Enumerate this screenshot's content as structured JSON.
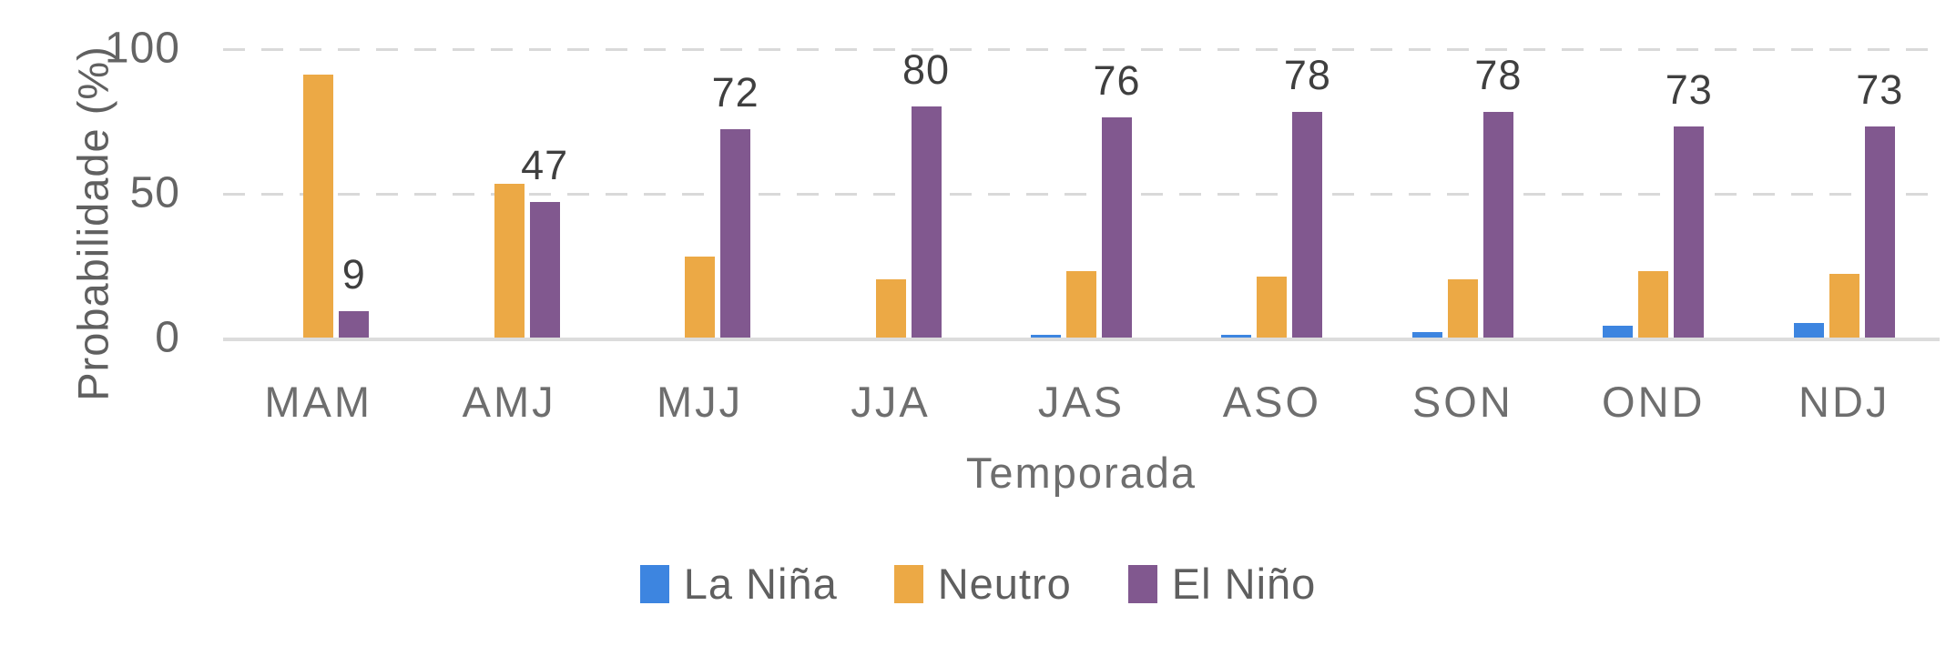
{
  "chart_data": {
    "type": "bar",
    "title": "",
    "xlabel": "Temporada",
    "ylabel": "Probabilidade (%)",
    "ylim": [
      0,
      100
    ],
    "yticks": [
      100,
      50,
      0
    ],
    "grid": "horizontal dashed at 50 and 100, solid baseline at 0",
    "legend_position": "bottom",
    "categories": [
      "MAM",
      "AMJ",
      "MJJ",
      "JJA",
      "JAS",
      "ASO",
      "SON",
      "OND",
      "NDJ"
    ],
    "series": [
      {
        "name": "La Niña",
        "color": "#3d85e0",
        "values": [
          0,
          0,
          0,
          0,
          1,
          1,
          2,
          4,
          5
        ]
      },
      {
        "name": "Neutro",
        "color": "#eca945",
        "values": [
          91,
          53,
          28,
          20,
          23,
          21,
          20,
          23,
          22
        ]
      },
      {
        "name": "El Niño",
        "color": "#81588f",
        "values": [
          9,
          47,
          72,
          80,
          76,
          78,
          78,
          73,
          73
        ],
        "data_labels": [
          "9",
          "47",
          "72",
          "80",
          "76",
          "78",
          "78",
          "73",
          "73"
        ]
      }
    ]
  }
}
